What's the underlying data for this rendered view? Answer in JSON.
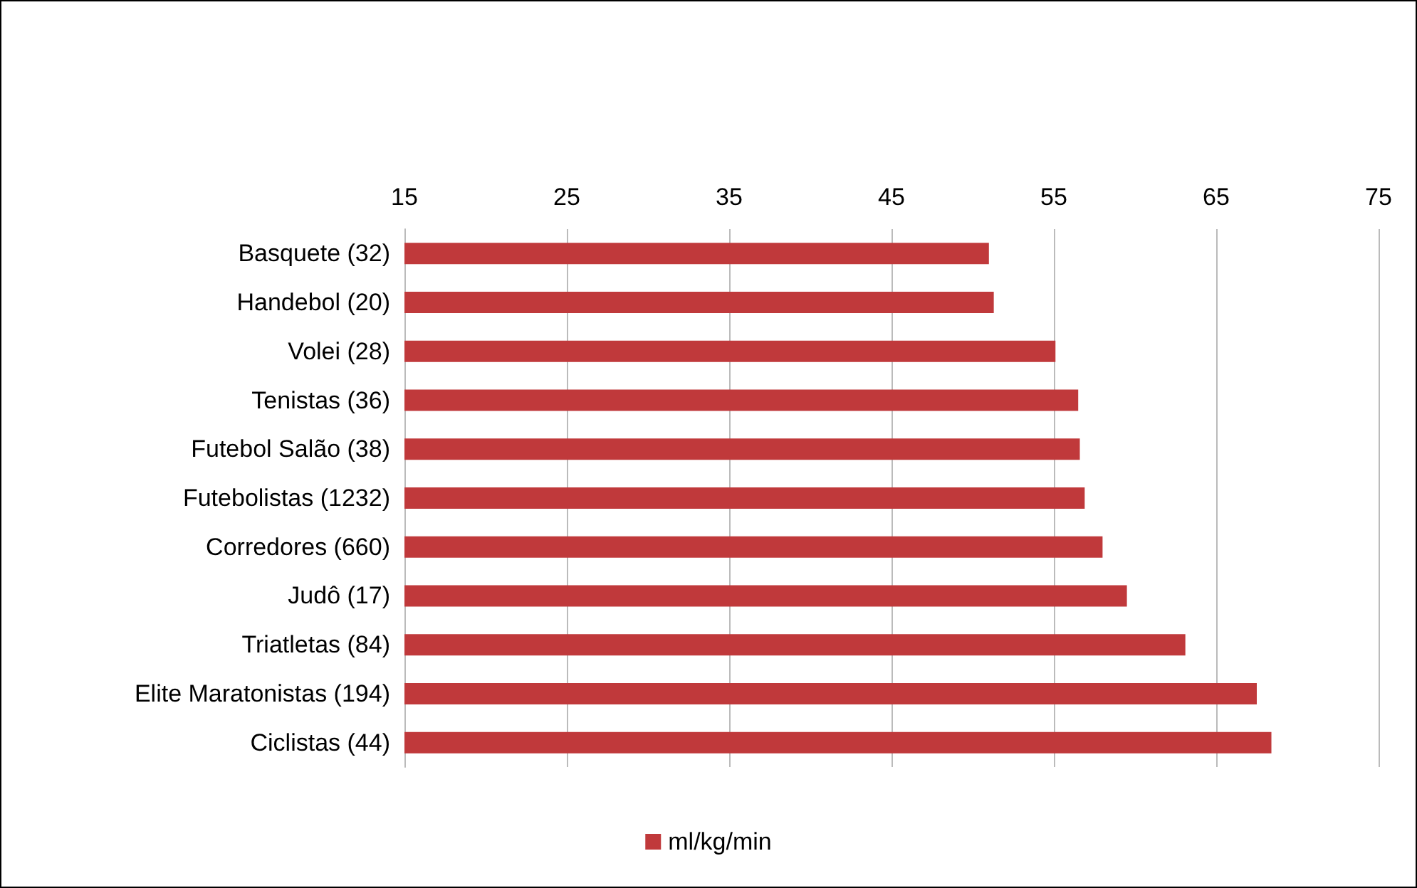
{
  "chart_data": {
    "type": "bar",
    "orientation": "horizontal",
    "categories": [
      "Basquete (32)",
      "Handebol (20)",
      "Volei (28)",
      "Tenistas (36)",
      "Futebol Salão (38)",
      "Futebolistas (1232)",
      "Corredores (660)",
      "Judô (17)",
      "Triatletas (84)",
      "Elite Maratonistas (194)",
      "Ciclistas (44)"
    ],
    "series": [
      {
        "name": "ml/kg/min",
        "color": "#c0393b",
        "values": [
          51.0,
          51.3,
          55.1,
          56.5,
          56.6,
          56.9,
          58.0,
          59.5,
          63.1,
          67.5,
          68.4
        ]
      }
    ],
    "xlim": [
      15,
      75
    ],
    "xticks": [
      15,
      25,
      35,
      45,
      55,
      65,
      75
    ],
    "grid": "x",
    "legend": "bottom"
  }
}
